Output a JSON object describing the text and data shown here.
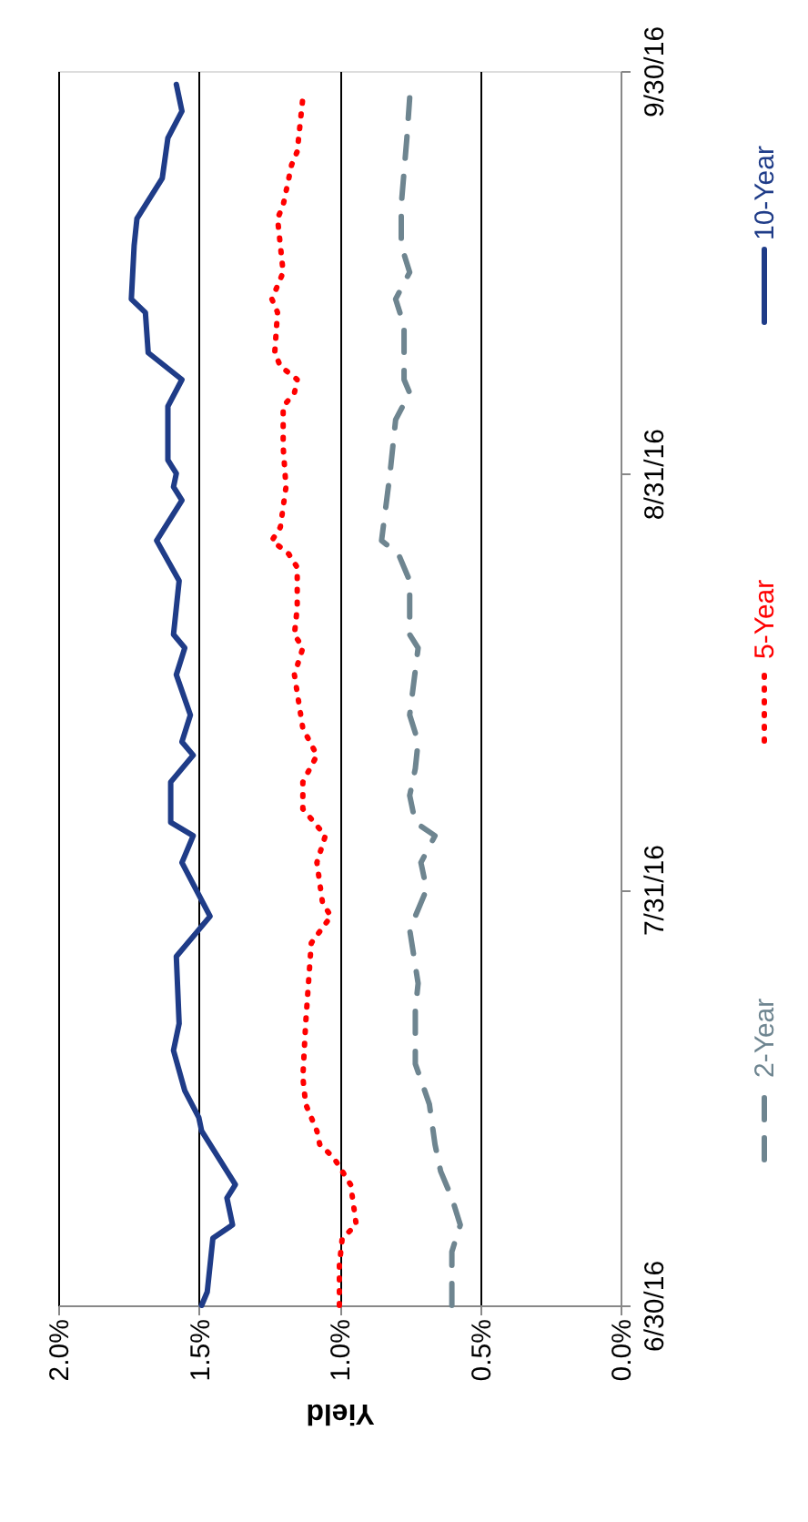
{
  "chart_data": {
    "type": "line",
    "orientation": "horizontal",
    "xlabel": "Yield",
    "xlim": [
      2,
      0
    ],
    "xticks": [
      {
        "value": 2,
        "label": "2.0%"
      },
      {
        "value": 1.5,
        "label": "1.5%"
      },
      {
        "value": 1,
        "label": "1.0%"
      },
      {
        "value": 0.5,
        "label": "0.5%"
      },
      {
        "value": 0,
        "label": "0.0%"
      }
    ],
    "ylim": [
      "2016-06-30",
      "2016-09-30"
    ],
    "yticks": [
      {
        "value": "2016-06-30",
        "label": "6/30/16"
      },
      {
        "value": "2016-07-31",
        "label": "7/31/16"
      },
      {
        "value": "2016-08-31",
        "label": "8/31/16"
      },
      {
        "value": "2016-09-30",
        "label": "9/30/16"
      }
    ],
    "grid": "x",
    "legend": "right",
    "series": [
      {
        "name": "2-Year",
        "color": "#6e8590",
        "line_style": "dashed",
        "x": [
          "2016-06-30",
          "2016-07-04",
          "2016-07-06",
          "2016-07-08",
          "2016-07-10",
          "2016-07-11",
          "2016-07-12",
          "2016-07-15",
          "2016-07-18",
          "2016-07-22",
          "2016-07-24",
          "2016-07-28",
          "2016-07-31",
          "2016-08-02",
          "2016-08-04",
          "2016-08-05",
          "2016-08-07",
          "2016-08-09",
          "2016-08-11",
          "2016-08-13",
          "2016-08-18",
          "2016-08-19",
          "2016-08-23",
          "2016-08-25",
          "2016-08-26",
          "2016-08-31",
          "2016-09-04",
          "2016-09-06",
          "2016-09-07",
          "2016-09-11",
          "2016-09-13",
          "2016-09-15",
          "2016-09-17",
          "2016-09-20",
          "2016-09-25",
          "2016-09-28"
        ],
        "values": [
          0.6,
          0.6,
          0.57,
          0.6,
          0.64,
          0.65,
          0.66,
          0.68,
          0.73,
          0.73,
          0.72,
          0.75,
          0.69,
          0.71,
          0.66,
          0.73,
          0.75,
          0.73,
          0.72,
          0.75,
          0.72,
          0.75,
          0.75,
          0.79,
          0.85,
          0.82,
          0.8,
          0.75,
          0.77,
          0.77,
          0.8,
          0.75,
          0.78,
          0.78,
          0.76,
          0.75
        ]
      },
      {
        "name": "5-Year",
        "color": "#ff0000",
        "line_style": "dotted",
        "x": [
          "2016-06-30",
          "2016-07-03",
          "2016-07-05",
          "2016-07-06",
          "2016-07-09",
          "2016-07-10",
          "2016-07-11",
          "2016-07-12",
          "2016-07-13",
          "2016-07-14",
          "2016-07-15",
          "2016-07-17",
          "2016-07-21",
          "2016-07-27",
          "2016-07-29",
          "2016-07-30",
          "2016-08-02",
          "2016-08-04",
          "2016-08-06",
          "2016-08-08",
          "2016-08-10",
          "2016-08-12",
          "2016-08-16",
          "2016-08-18",
          "2016-08-19",
          "2016-08-21",
          "2016-08-24",
          "2016-08-25",
          "2016-08-26",
          "2016-08-27",
          "2016-08-30",
          "2016-09-02",
          "2016-09-05",
          "2016-09-06",
          "2016-09-07",
          "2016-09-08",
          "2016-09-09",
          "2016-09-12",
          "2016-09-13",
          "2016-09-15",
          "2016-09-17",
          "2016-09-19",
          "2016-09-20",
          "2016-09-23",
          "2016-09-24",
          "2016-09-28"
        ],
        "values": [
          1.0,
          1.0,
          0.99,
          0.94,
          0.96,
          0.99,
          1.02,
          1.07,
          1.08,
          1.1,
          1.12,
          1.13,
          1.12,
          1.1,
          1.03,
          1.06,
          1.08,
          1.05,
          1.13,
          1.13,
          1.08,
          1.13,
          1.16,
          1.13,
          1.16,
          1.15,
          1.15,
          1.18,
          1.24,
          1.21,
          1.19,
          1.2,
          1.2,
          1.16,
          1.15,
          1.21,
          1.23,
          1.22,
          1.24,
          1.2,
          1.21,
          1.22,
          1.2,
          1.17,
          1.15,
          1.13
        ]
      },
      {
        "name": "10-Year",
        "color": "#1f3c88",
        "line_style": "solid",
        "x": [
          "2016-06-30",
          "2016-07-01",
          "2016-07-05",
          "2016-07-06",
          "2016-07-08",
          "2016-07-09",
          "2016-07-12",
          "2016-07-13",
          "2016-07-14",
          "2016-07-16",
          "2016-07-19",
          "2016-07-21",
          "2016-07-26",
          "2016-07-28",
          "2016-07-29",
          "2016-08-02",
          "2016-08-04",
          "2016-08-05",
          "2016-08-08",
          "2016-08-10",
          "2016-08-11",
          "2016-08-13",
          "2016-08-16",
          "2016-08-18",
          "2016-08-19",
          "2016-08-23",
          "2016-08-26",
          "2016-08-29",
          "2016-08-30",
          "2016-08-31",
          "2016-09-01",
          "2016-09-05",
          "2016-09-07",
          "2016-09-09",
          "2016-09-12",
          "2016-09-13",
          "2016-09-17",
          "2016-09-19",
          "2016-09-22",
          "2016-09-25",
          "2016-09-27",
          "2016-09-29"
        ],
        "values": [
          1.49,
          1.47,
          1.45,
          1.38,
          1.4,
          1.37,
          1.46,
          1.49,
          1.5,
          1.55,
          1.59,
          1.57,
          1.58,
          1.5,
          1.46,
          1.56,
          1.52,
          1.6,
          1.6,
          1.52,
          1.56,
          1.53,
          1.58,
          1.55,
          1.59,
          1.57,
          1.65,
          1.56,
          1.59,
          1.58,
          1.61,
          1.61,
          1.56,
          1.68,
          1.69,
          1.74,
          1.73,
          1.72,
          1.63,
          1.61,
          1.56,
          1.58
        ]
      }
    ]
  }
}
